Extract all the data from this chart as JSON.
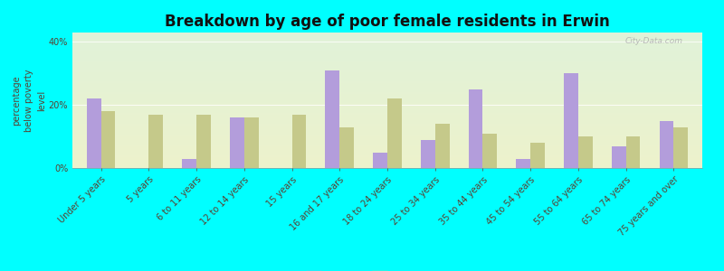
{
  "title": "Breakdown by age of poor female residents in Erwin",
  "ylabel": "percentage\nbelow poverty\nlevel",
  "categories": [
    "Under 5 years",
    "5 years",
    "6 to 11 years",
    "12 to 14 years",
    "15 years",
    "16 and 17 years",
    "18 to 24 years",
    "25 to 34 years",
    "35 to 44 years",
    "45 to 54 years",
    "55 to 64 years",
    "65 to 74 years",
    "75 years and over"
  ],
  "erwin": [
    22,
    0,
    3,
    16,
    0,
    31,
    5,
    9,
    25,
    3,
    30,
    7,
    15
  ],
  "nc": [
    18,
    17,
    17,
    16,
    17,
    13,
    22,
    14,
    11,
    8,
    10,
    10,
    13
  ],
  "erwin_color": "#b39ddb",
  "nc_color": "#c5c98a",
  "bg_color": "#00ffff",
  "yticks": [
    0,
    20,
    40
  ],
  "ytick_labels": [
    "0%",
    "20%",
    "40%"
  ],
  "bar_width": 0.3,
  "title_fontsize": 12,
  "axis_label_fontsize": 7,
  "tick_fontsize": 7,
  "legend_fontsize": 8,
  "gradient_top": "#d8ead8",
  "gradient_bottom": "#e8eecc",
  "ylim": [
    0,
    43
  ]
}
